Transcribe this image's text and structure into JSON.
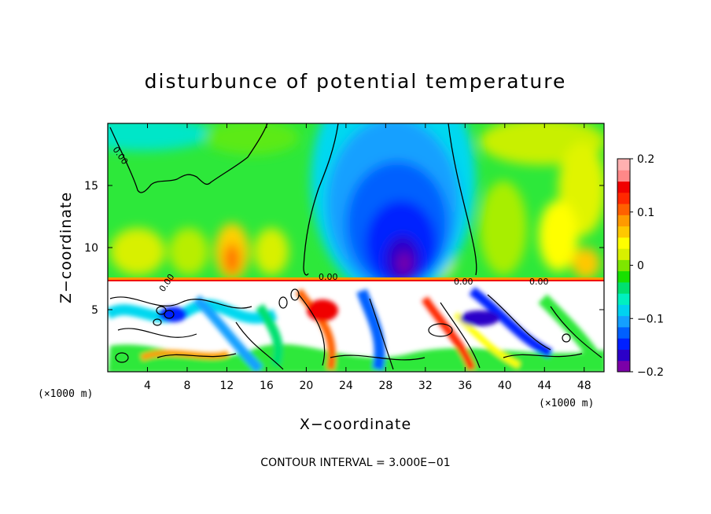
{
  "chart_data": {
    "type": "heatmap",
    "title": "disturbunce of potential temperature",
    "xlabel": "X−coordinate",
    "ylabel": "Z−coordinate",
    "x_unit": "(×1000 m)",
    "x_unit_right": "(×1000 m)",
    "x_ticks": [
      4,
      8,
      12,
      16,
      20,
      24,
      28,
      32,
      36,
      40,
      44,
      48
    ],
    "y_ticks": [
      5,
      10,
      15
    ],
    "xlim": [
      0,
      50
    ],
    "ylim": [
      0,
      20
    ],
    "colorbar": {
      "ticks": [
        {
          "value": 0.2,
          "label": "0.2"
        },
        {
          "value": 0.1,
          "label": "0.1"
        },
        {
          "value": 0,
          "label": "0"
        },
        {
          "value": -0.1,
          "label": "−0.1"
        },
        {
          "value": -0.2,
          "label": "−0.2"
        }
      ],
      "range": [
        -0.2,
        0.2
      ],
      "colors": [
        "#7b00a8",
        "#2b00c8",
        "#0020ff",
        "#0060ff",
        "#14a0ff",
        "#00d2f0",
        "#00f0c0",
        "#00e070",
        "#18e000",
        "#7ee600",
        "#d8f000",
        "#ffff00",
        "#ffc800",
        "#ff9a00",
        "#ff6000",
        "#ff2800",
        "#f00000",
        "#ff8888",
        "#ffb0b0"
      ]
    },
    "contour_labels": [
      "0.00",
      "0.00",
      "0.00",
      "0.00",
      "0.00"
    ],
    "contour_interval": "3.000E−01",
    "footer": "CONTOUR INTERVAL = 3.000E−01"
  }
}
